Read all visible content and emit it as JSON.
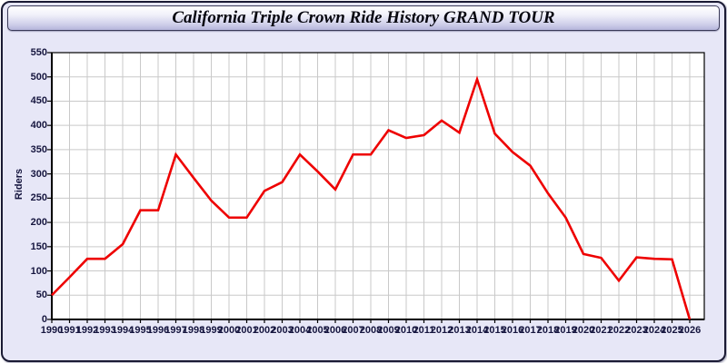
{
  "window": {
    "title": "California Triple Crown Ride History GRAND TOUR"
  },
  "colors": {
    "page_background": "#e7e7f7",
    "plot_background": "#ffffff",
    "grid": "#c9c9c9",
    "axis": "#000000",
    "tick_text": "#16163f",
    "series_red": "#ee0000"
  },
  "chart_data": {
    "type": "line",
    "title": "California Triple Crown Ride History GRAND TOUR",
    "xlabel": "",
    "ylabel": "Riders",
    "ylim": [
      0,
      550
    ],
    "ytick_interval": 50,
    "grid": true,
    "legend_position": "none",
    "x": [
      1990,
      1991,
      1992,
      1993,
      1994,
      1995,
      1996,
      1997,
      1998,
      1999,
      2000,
      2001,
      2002,
      2003,
      2004,
      2005,
      2006,
      2007,
      2008,
      2009,
      2010,
      2011,
      2012,
      2013,
      2014,
      2015,
      2016,
      2017,
      2018,
      2019,
      2020,
      2021,
      2022,
      2023,
      2024,
      2025,
      2026
    ],
    "series": [
      {
        "name": "Riders",
        "color": "#ee0000",
        "values": [
          50,
          87,
          125,
          125,
          155,
          225,
          225,
          340,
          292,
          245,
          210,
          210,
          265,
          283,
          340,
          305,
          268,
          340,
          340,
          390,
          374,
          380,
          410,
          385,
          495,
          383,
          345,
          317,
          260,
          210,
          135,
          127,
          80,
          128,
          125,
          124,
          0
        ]
      }
    ]
  }
}
